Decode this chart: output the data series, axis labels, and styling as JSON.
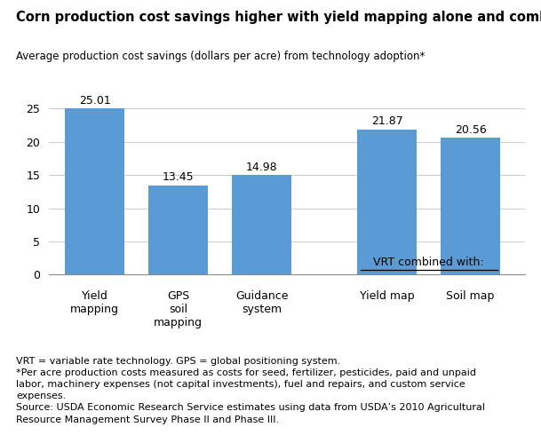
{
  "title": "Corn production cost savings higher with yield mapping alone and combined with VRT",
  "axis_label": "Average production cost savings (dollars per acre) from technology adoption*",
  "bar_values": [
    25.01,
    13.45,
    14.98,
    21.87,
    20.56
  ],
  "bar_labels_top": [
    "Yield\nmapping",
    "GPS\nsoil\nmapping",
    "Guidance\nsystem",
    "Yield map",
    "Soil map"
  ],
  "bar_color": "#5b9bd5",
  "bar_positions": [
    0,
    1,
    2,
    3.5,
    4.5
  ],
  "xlim": [
    -0.55,
    5.15
  ],
  "ylim": [
    0,
    28
  ],
  "yticks": [
    0,
    5,
    10,
    15,
    20,
    25
  ],
  "vrt_label": "VRT combined with:",
  "footnotes": "VRT = variable rate technology. GPS = global positioning system.\n*Per acre production costs measured as costs for seed, fertilizer, pesticides, paid and unpaid\nlabor, machinery expenses (not capital investments), fuel and repairs, and custom service\nexpenses.\nSource: USDA Economic Research Service estimates using data from USDA’s 2010 Agricultural\nResource Management Survey Phase II and Phase III.",
  "bg_color": "#ffffff",
  "bar_label_fontsize": 9,
  "value_fontsize": 9,
  "title_fontsize": 10.5,
  "axis_label_fontsize": 8.5,
  "footnote_fontsize": 8,
  "ytick_fontsize": 9
}
